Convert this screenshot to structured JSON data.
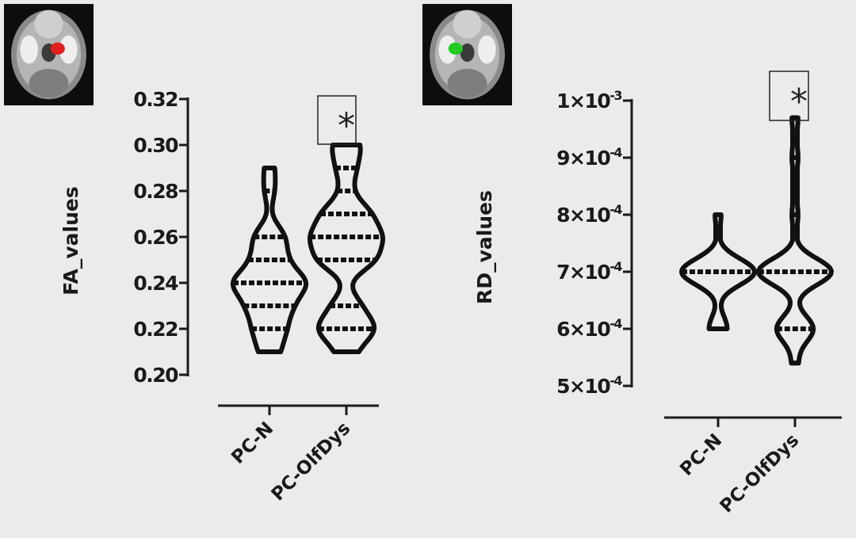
{
  "chart_data": [
    {
      "type": "violin",
      "ylabel": "FA_values",
      "ylim": [
        0.2,
        0.32
      ],
      "yticks": [
        0.2,
        0.22,
        0.24,
        0.26,
        0.28,
        0.3,
        0.32
      ],
      "ytick_labels": [
        "0.20",
        "0.22",
        "0.24",
        "0.26",
        "0.28",
        "0.30",
        "0.32"
      ],
      "categories": [
        "PC-N",
        "PC-OlfDys"
      ],
      "groups": [
        {
          "category": "PC-N",
          "points": [
            [
              0.21,
              2
            ],
            [
              0.22,
              3
            ],
            [
              0.23,
              4
            ],
            [
              0.24,
              7
            ],
            [
              0.25,
              3
            ],
            [
              0.26,
              3
            ],
            [
              0.28,
              1
            ],
            [
              0.29,
              1
            ]
          ]
        },
        {
          "category": "PC-OlfDys",
          "points": [
            [
              0.21,
              2
            ],
            [
              0.22,
              6
            ],
            [
              0.23,
              3
            ],
            [
              0.25,
              6
            ],
            [
              0.26,
              7
            ],
            [
              0.27,
              5
            ],
            [
              0.28,
              1
            ],
            [
              0.29,
              2
            ],
            [
              0.3,
              3
            ]
          ]
        }
      ],
      "annotation": {
        "category": "PC-OlfDys",
        "text": "*"
      },
      "brain_highlight_color": "#e02020"
    },
    {
      "type": "violin",
      "ylabel": "RD_values",
      "ylim": [
        0.0005,
        0.001
      ],
      "yticks": [
        0.0005,
        0.0006,
        0.0007,
        0.0008,
        0.0009,
        0.001
      ],
      "ytick_labels": [
        {
          "mant": "5×10",
          "exp": "-4"
        },
        {
          "mant": "6×10",
          "exp": "-4"
        },
        {
          "mant": "7×10",
          "exp": "-4"
        },
        {
          "mant": "8×10",
          "exp": "-4"
        },
        {
          "mant": "9×10",
          "exp": "-4"
        },
        {
          "mant": "1×10",
          "exp": "-3"
        }
      ],
      "categories": [
        "PC-N",
        "PC-OlfDys"
      ],
      "groups": [
        {
          "category": "PC-N",
          "points": [
            [
              0.0006,
              3
            ],
            [
              0.0007,
              12
            ],
            [
              0.0008,
              1
            ]
          ]
        },
        {
          "category": "PC-OlfDys",
          "points": [
            [
              0.00054,
              1
            ],
            [
              0.0006,
              6
            ],
            [
              0.0007,
              12
            ],
            [
              0.0008,
              1
            ],
            [
              0.0009,
              1
            ],
            [
              0.00097,
              1
            ]
          ]
        }
      ],
      "annotation": {
        "category": "PC-OlfDys",
        "text": "*"
      },
      "brain_highlight_color": "#22cc22"
    }
  ]
}
